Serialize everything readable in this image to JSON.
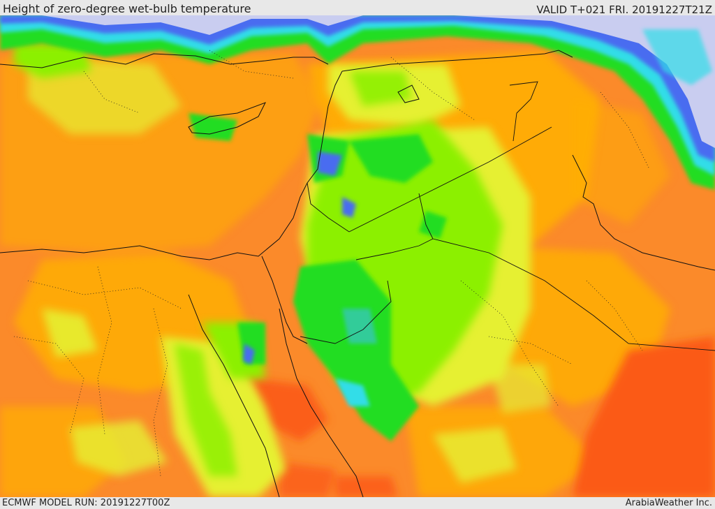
{
  "header": {
    "title": "Height of zero-degree wet-bulb temperature",
    "valid_time": "VALID T+021 FRI. 20191227T21Z"
  },
  "footer": {
    "model_run": "ECMWF MODEL RUN: 20191227T00Z",
    "credit": "ArabiaWeather Inc."
  },
  "map": {
    "field_colors": {
      "very_low": "#c9cdf0",
      "low_cyan": "#33dde8",
      "low_blue": "#4a6cf0",
      "green_dark": "#22dd22",
      "green_light": "#8cf000",
      "yellow": "#e6f032",
      "orange_light": "#ffb000",
      "orange": "#fb8a2a",
      "orange_red": "#fb5a18"
    }
  }
}
